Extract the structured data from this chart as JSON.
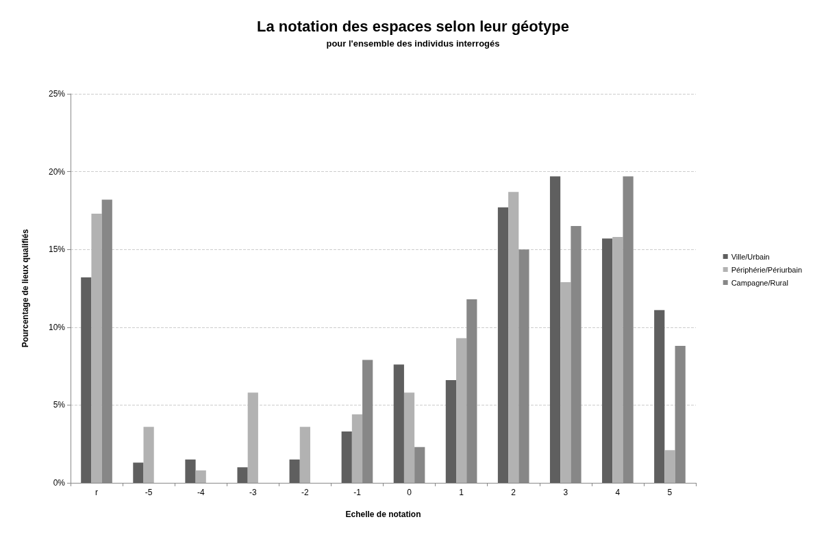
{
  "chart_data": {
    "type": "bar",
    "title": "La notation des espaces selon leur géotype",
    "subtitle": "pour l'ensemble des individus interrogés",
    "xlabel": "Echelle de notation",
    "ylabel": "Pourcentage de lieux qualifiés",
    "categories": [
      "r",
      "-5",
      "-4",
      "-3",
      "-2",
      "-1",
      "0",
      "1",
      "2",
      "3",
      "4",
      "5"
    ],
    "series": [
      {
        "name": "Ville/Urbain",
        "color": "#5f5f5f",
        "values": [
          13.2,
          1.3,
          1.5,
          1.0,
          1.5,
          3.3,
          7.6,
          6.6,
          17.7,
          19.7,
          15.7,
          11.1
        ]
      },
      {
        "name": "Périphérie/Périurbain",
        "color": "#b2b2b2",
        "values": [
          17.3,
          3.6,
          0.8,
          5.8,
          3.6,
          4.4,
          5.8,
          9.3,
          18.7,
          12.9,
          15.8,
          2.1
        ]
      },
      {
        "name": "Campagne/Rural",
        "color": "#878787",
        "values": [
          18.2,
          0,
          0,
          0,
          0,
          7.9,
          2.3,
          11.8,
          15.0,
          16.5,
          19.7,
          8.8
        ]
      }
    ],
    "ylim": [
      0,
      25
    ],
    "yticks": [
      {
        "value": 0,
        "label": "0%"
      },
      {
        "value": 5,
        "label": "5%"
      },
      {
        "value": 10,
        "label": "10%"
      },
      {
        "value": 15,
        "label": "15%"
      },
      {
        "value": 20,
        "label": "20%"
      },
      {
        "value": 25,
        "label": "25%"
      }
    ],
    "grid": "y",
    "legend": "right"
  }
}
